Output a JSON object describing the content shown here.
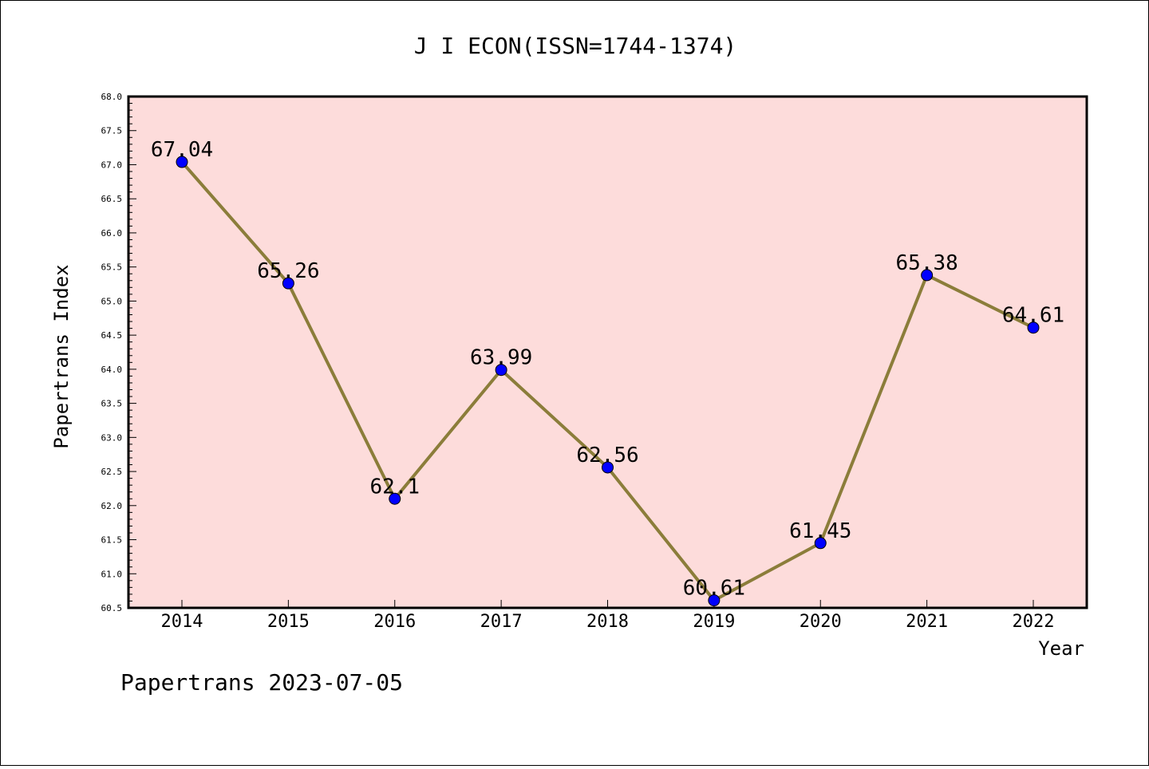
{
  "chart_data": {
    "type": "line",
    "title": "J I ECON(ISSN=1744-1374)",
    "xlabel": "Year",
    "ylabel": "Papertrans Index",
    "categories": [
      "2014",
      "2015",
      "2016",
      "2017",
      "2018",
      "2019",
      "2020",
      "2021",
      "2022"
    ],
    "series": [
      {
        "values": [
          67.04,
          65.26,
          62.1,
          63.99,
          62.56,
          60.61,
          61.45,
          65.38,
          64.61
        ],
        "labels": [
          "67.04",
          "65.26",
          "62.1",
          "63.99",
          "62.56",
          "60.61",
          "61.45",
          "65.38",
          "64.61"
        ],
        "line_color": "#8b7d3a",
        "marker_color": "#0000ff"
      }
    ],
    "ylim": [
      60.5,
      68.0
    ],
    "yticks": [
      "60.5",
      "61.0",
      "61.5",
      "62.0",
      "62.5",
      "63.0",
      "63.5",
      "64.0",
      "64.5",
      "65.0",
      "65.5",
      "66.0",
      "66.5",
      "67.0",
      "67.5",
      "68.0"
    ],
    "grid": false,
    "background_color": "#fddcdb"
  },
  "footer": {
    "text": "Papertrans 2023-07-05"
  }
}
